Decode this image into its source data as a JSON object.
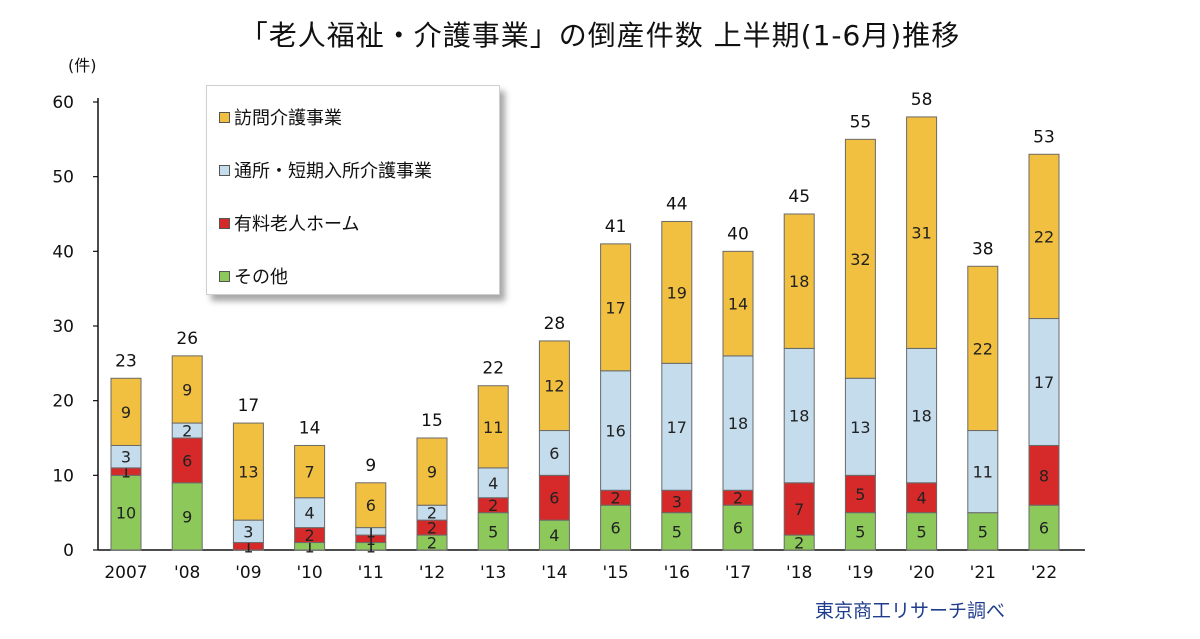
{
  "chart_data": {
    "type": "bar",
    "stacked": true,
    "title": "「老人福祉・介護事業」の倒産件数 上半期(1-6月)推移",
    "unit_label": "(件)",
    "source": "東京商工リサーチ調べ",
    "ylim": [
      0,
      60
    ],
    "yticks": [
      "0",
      "10",
      "20",
      "30",
      "40",
      "50",
      "60"
    ],
    "categories": [
      "2007",
      "'08",
      "'09",
      "'10",
      "'11",
      "'12",
      "'13",
      "'14",
      "'15",
      "'16",
      "'17",
      "'18",
      "'19",
      "'20",
      "'21",
      "'22"
    ],
    "totals": [
      23,
      26,
      17,
      14,
      9,
      15,
      22,
      28,
      41,
      44,
      40,
      45,
      55,
      58,
      38,
      53
    ],
    "series": [
      {
        "name": "その他",
        "color": "#8cc85a",
        "values": [
          10,
          9,
          0,
          1,
          1,
          2,
          5,
          4,
          6,
          5,
          6,
          2,
          5,
          5,
          5,
          6
        ]
      },
      {
        "name": "有料老人ホーム",
        "color": "#d62a2a",
        "values": [
          1,
          6,
          1,
          2,
          1,
          2,
          2,
          6,
          2,
          3,
          2,
          7,
          5,
          4,
          0,
          8
        ]
      },
      {
        "name": "通所・短期入所介護事業",
        "color": "#c4dcec",
        "values": [
          3,
          2,
          3,
          4,
          1,
          2,
          4,
          6,
          16,
          17,
          18,
          18,
          13,
          18,
          11,
          17
        ]
      },
      {
        "name": "訪問介護事業",
        "color": "#f2c040",
        "values": [
          9,
          9,
          13,
          7,
          6,
          9,
          11,
          12,
          17,
          19,
          14,
          18,
          32,
          31,
          22,
          22
        ]
      }
    ],
    "legend": [
      "訪問介護事業",
      "通所・短期入所介護事業",
      "有料老人ホーム",
      "その他"
    ],
    "legend_position": "top-left",
    "grid": false
  }
}
